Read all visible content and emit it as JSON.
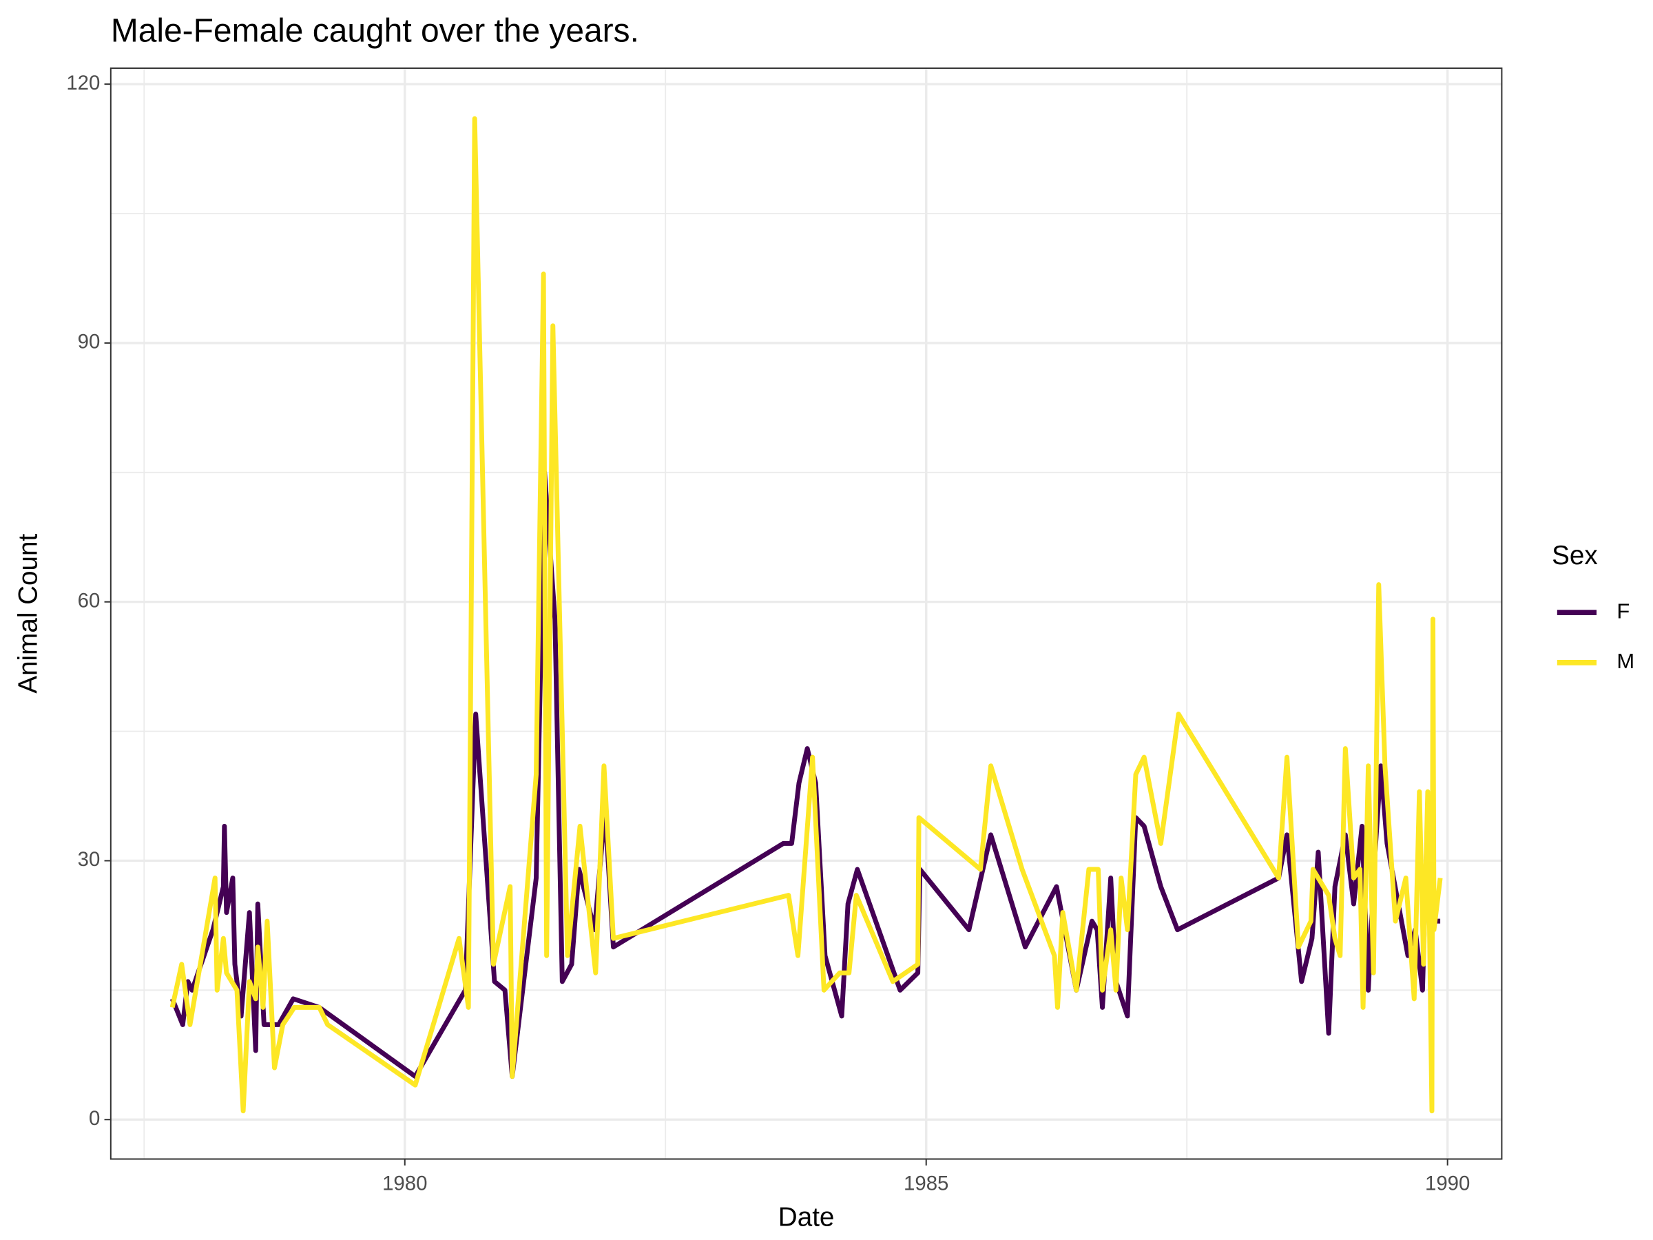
{
  "chart_data": {
    "type": "line",
    "title": "Male-Female caught over the years.",
    "x_label": "Date",
    "y_label": "Animal Count",
    "legend_title": "Sex",
    "legend_position": "right",
    "grid": true,
    "xlim": [
      1977.18,
      1990.52
    ],
    "xticks": [
      1980,
      1985,
      1990
    ],
    "x_minor_ticks": [
      1977.5,
      1982.5,
      1987.5
    ],
    "ylim": [
      -4.57,
      121.85
    ],
    "yticks": [
      0,
      30,
      60,
      90,
      120
    ],
    "y_minor_ticks": [
      15,
      45,
      75,
      105
    ],
    "series": [
      {
        "name": "F",
        "color": "#440154",
        "x": [
          1977.77,
          1977.87,
          1977.92,
          1977.96,
          1978.16,
          1978.26,
          1978.27,
          1978.29,
          1978.35,
          1978.37,
          1978.43,
          1978.51,
          1978.57,
          1978.59,
          1978.65,
          1978.79,
          1978.93,
          1979.18,
          1980.1,
          1980.58,
          1980.68,
          1980.86,
          1980.96,
          1981.03,
          1981.26,
          1981.34,
          1981.44,
          1981.51,
          1981.6,
          1981.67,
          1981.82,
          1981.92,
          1982.0,
          1983.63,
          1983.71,
          1983.78,
          1983.86,
          1983.94,
          1984.03,
          1984.19,
          1984.25,
          1984.34,
          1984.75,
          1984.92,
          1984.94,
          1985.41,
          1985.62,
          1985.95,
          1986.25,
          1986.44,
          1986.59,
          1986.64,
          1986.69,
          1986.77,
          1986.82,
          1986.93,
          1987.01,
          1987.09,
          1987.25,
          1987.41,
          1988.38,
          1988.46,
          1988.6,
          1988.7,
          1988.76,
          1988.86,
          1988.92,
          1989.02,
          1989.1,
          1989.18,
          1989.24,
          1989.3,
          1989.36,
          1989.42,
          1989.62,
          1989.69,
          1989.76,
          1989.8,
          1989.86,
          1989.93
        ],
        "values": [
          14,
          11,
          16,
          15,
          22,
          27,
          34,
          24,
          28,
          18,
          12,
          24,
          8,
          25,
          11,
          11,
          14,
          13,
          5,
          15,
          47,
          16,
          15,
          5,
          28,
          75,
          58,
          16,
          18,
          29,
          22,
          36,
          20,
          32,
          32,
          39,
          43,
          39,
          19,
          12,
          25,
          29,
          15,
          17,
          29,
          22,
          33,
          20,
          27,
          15,
          23,
          22,
          13,
          28,
          16,
          12,
          35,
          34,
          27,
          22,
          28,
          33,
          16,
          21,
          31,
          10,
          27,
          33,
          25,
          34,
          15,
          30,
          41,
          32,
          19,
          22,
          15,
          32,
          23,
          23
        ]
      },
      {
        "name": "M",
        "color": "#fde725",
        "x": [
          1977.77,
          1977.86,
          1977.94,
          1978.18,
          1978.2,
          1978.26,
          1978.29,
          1978.39,
          1978.45,
          1978.51,
          1978.57,
          1978.59,
          1978.64,
          1978.68,
          1978.75,
          1978.83,
          1978.94,
          1979.18,
          1979.26,
          1980.1,
          1980.52,
          1980.61,
          1980.67,
          1980.85,
          1981.01,
          1981.03,
          1981.26,
          1981.33,
          1981.36,
          1981.42,
          1981.56,
          1981.68,
          1981.83,
          1981.91,
          1982.0,
          1983.68,
          1983.77,
          1983.91,
          1984.02,
          1984.17,
          1984.26,
          1984.33,
          1984.68,
          1984.92,
          1984.93,
          1985.52,
          1985.62,
          1985.92,
          1986.23,
          1986.26,
          1986.31,
          1986.44,
          1986.56,
          1986.65,
          1986.69,
          1986.77,
          1986.82,
          1986.87,
          1986.93,
          1987.01,
          1987.09,
          1987.25,
          1987.42,
          1988.38,
          1988.46,
          1988.57,
          1988.69,
          1988.71,
          1988.86,
          1988.92,
          1988.97,
          1989.02,
          1989.1,
          1989.16,
          1989.19,
          1989.24,
          1989.29,
          1989.34,
          1989.4,
          1989.5,
          1989.6,
          1989.68,
          1989.73,
          1989.77,
          1989.81,
          1989.85,
          1989.86,
          1989.87,
          1989.93
        ],
        "values": [
          13,
          18,
          11,
          28,
          15,
          21,
          17,
          15,
          1,
          16,
          14,
          20,
          13,
          23,
          6,
          11,
          13,
          13,
          11,
          4,
          21,
          13,
          116,
          18,
          27,
          5,
          40,
          98,
          19,
          92,
          19,
          34,
          17,
          41,
          21,
          26,
          19,
          42,
          15,
          17,
          17,
          26,
          16,
          18,
          35,
          29,
          41,
          29,
          19,
          13,
          24,
          15,
          29,
          29,
          15,
          22,
          15,
          28,
          22,
          40,
          42,
          32,
          47,
          28,
          42,
          20,
          23,
          29,
          26,
          21,
          19,
          43,
          28,
          29,
          13,
          41,
          17,
          62,
          41,
          23,
          28,
          14,
          38,
          18,
          38,
          1,
          58,
          22,
          28
        ]
      }
    ]
  }
}
